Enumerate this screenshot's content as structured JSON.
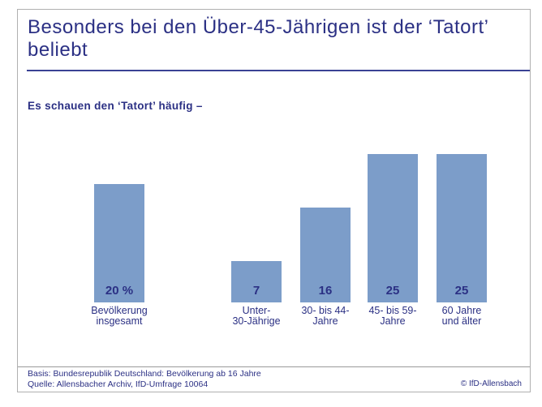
{
  "title": "Besonders bei den Über-45-Jährigen ist der ‘Tatort’ beliebt",
  "subtitle": "Es schauen den ‘Tatort’ häufig –",
  "footer": {
    "basis": "Basis: Bundesrepublik Deutschland: Bevölkerung ab 16 Jahre",
    "quelle": "Quelle: Allensbacher Archiv, IfD-Umfrage 10064",
    "copyright": "© IfD-Allensbach"
  },
  "colors": {
    "navy": "#2b3084",
    "bar_fill": "#7c9dc9",
    "frame_border": "#b0b0b0",
    "title_underline": "#3a4294",
    "footer_separator": "#9a9a9a"
  },
  "chart_data": {
    "type": "bar",
    "unit": "percent",
    "categories": [
      "Bevölkerung\ninsgesamt",
      "Unter-\n30-Jährige",
      "30- bis 44-\nJahre",
      "45- bis 59-\nJahre",
      "60 Jahre\nund älter"
    ],
    "values": [
      20,
      7,
      16,
      25,
      25
    ],
    "value_labels": [
      "20 %",
      "7",
      "16",
      "25",
      "25"
    ],
    "title": "Es schauen den ‘Tatort’ häufig –",
    "xlabel": "",
    "ylabel": "",
    "ylim": [
      0,
      27
    ],
    "grid": false,
    "legend": false,
    "bar_color": "#7c9dc9",
    "notes": "first bar (Bevölkerung insgesamt) is visually separated from the four age-group bars"
  }
}
